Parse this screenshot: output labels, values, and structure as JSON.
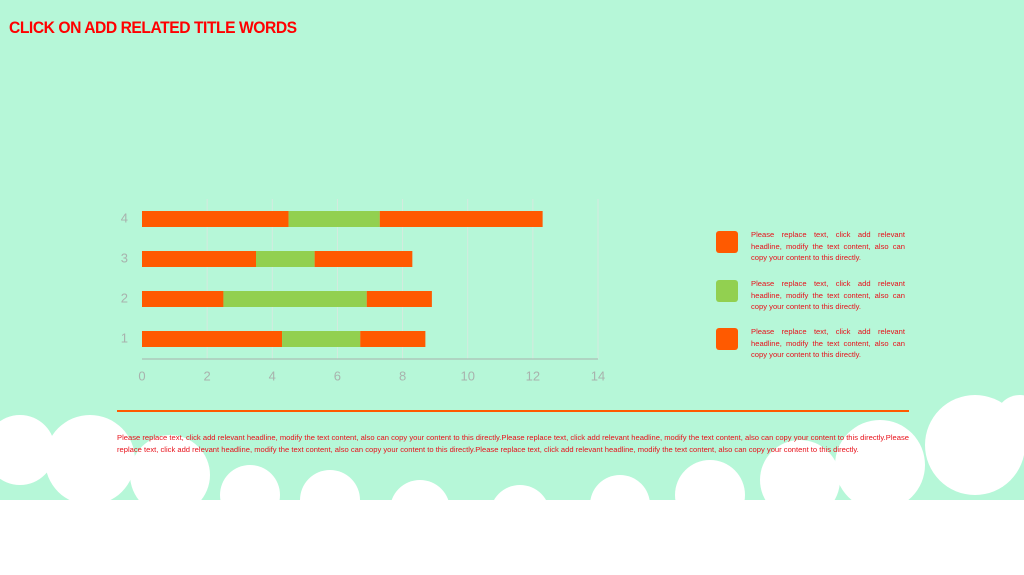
{
  "header": {
    "title": "CLICK ON ADD RELATED TITLE WORDS"
  },
  "chart_data": {
    "type": "stacked-barh",
    "categories": [
      "1",
      "2",
      "3",
      "4"
    ],
    "series": [
      {
        "name": "Please replace text, click add relevant headline, modify the text content, also can copy your content to this directly.",
        "color": "#ff5a00",
        "values": [
          4.3,
          2.5,
          3.5,
          4.5
        ]
      },
      {
        "name": "Please replace text, click add relevant headline, modify the text content, also can copy your content to this directly.",
        "color": "#92d050",
        "values": [
          2.4,
          4.4,
          1.8,
          2.8
        ]
      },
      {
        "name": "Please replace text, click add relevant headline, modify the text content, also can copy your content to this directly.",
        "color": "#ff5a00",
        "values": [
          2.0,
          2.0,
          3.0,
          5.0
        ]
      }
    ],
    "xlim": [
      0,
      14
    ],
    "xticks": [
      0,
      2,
      4,
      6,
      8,
      10,
      12,
      14
    ],
    "grid": true
  },
  "body": {
    "text": "Please replace text, click add relevant headline, modify the text content, also can copy your content to this directly.Please replace text, click add relevant headline, modify the text content, also can copy your content to this directly.Please replace text, click add relevant headline, modify the text content, also can copy your content to this directly.Please replace text, click add relevant headline, modify the text content, also can copy your content to this directly."
  }
}
